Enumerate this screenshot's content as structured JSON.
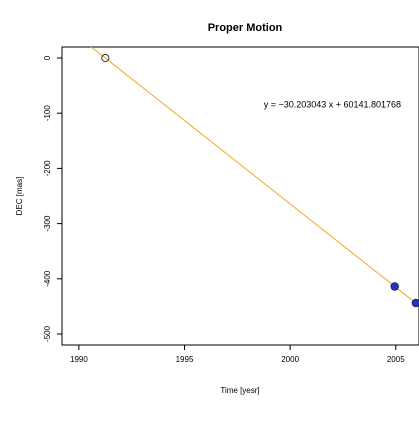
{
  "chart_data": {
    "type": "scatter",
    "title": "Proper Motion",
    "xlabel": "Time [yesr]",
    "ylabel": "DEC [mas]",
    "xlim": [
      1989.2,
      2006.1
    ],
    "ylim": [
      -520,
      20
    ],
    "x_ticks": [
      1990,
      1995,
      2000,
      2005
    ],
    "y_ticks": [
      0,
      -100,
      -200,
      -300,
      -400,
      -500
    ],
    "x_tick_labels": [
      "1990",
      "1995",
      "2000",
      "2005"
    ],
    "y_tick_labels": [
      "0",
      "-100",
      "-200",
      "-300",
      "-400",
      "-500"
    ],
    "grid": false,
    "legend": "none",
    "points": [
      {
        "x": 1991.25,
        "y": 0,
        "style": "open",
        "color": "#444444"
      },
      {
        "x": 2004.95,
        "y": -414,
        "style": "filled",
        "color": "#2233cc"
      },
      {
        "x": 2005.95,
        "y": -444,
        "style": "filled",
        "color": "#2233cc"
      }
    ],
    "fit_line": {
      "slope": -30.203043,
      "intercept": 60141.801768,
      "color": "#f5a623"
    },
    "annotation": {
      "text": "y = −30.203043 x + 60141.801768",
      "x": 2002.0,
      "y": -90
    }
  }
}
